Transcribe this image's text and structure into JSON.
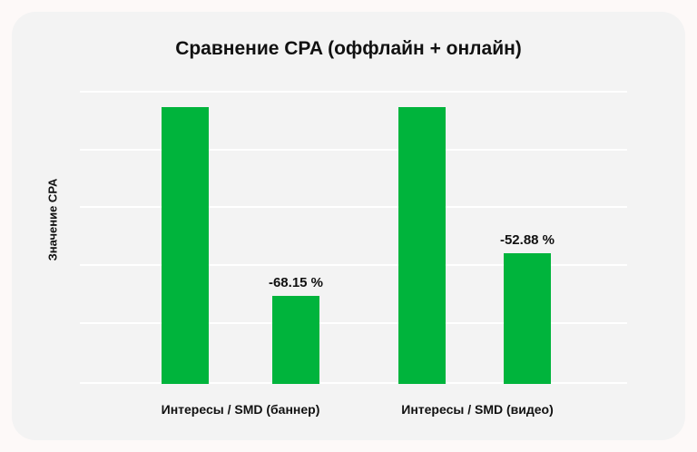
{
  "chart_data": {
    "type": "bar",
    "title": "Сравнение CPA (оффлайн + онлайн)",
    "xlabel": "",
    "ylabel": "Значение CPA",
    "categories": [
      "Интересы / SMD (баннер)",
      "Интересы / SMD (видео)"
    ],
    "series": [
      {
        "name": "Интересы",
        "values": [
          100,
          100
        ]
      },
      {
        "name": "SMD",
        "values": [
          31.85,
          47.12
        ]
      }
    ],
    "annotations": [
      "-68.15 %",
      "-52.88 %"
    ],
    "ylim": [
      0,
      105
    ],
    "grid": true,
    "y_ticks_visible": false,
    "legend": "none",
    "bar_color": "#00b43c"
  },
  "page": {
    "title": "Сравнение CPA (оффлайн + онлайн)",
    "ylabel": "Значение CPA",
    "x_labels": [
      "Интересы / SMD (баннер)",
      "Интересы / SMD (видео)"
    ],
    "data_labels": [
      "-68.15 %",
      "-52.88 %"
    ]
  }
}
